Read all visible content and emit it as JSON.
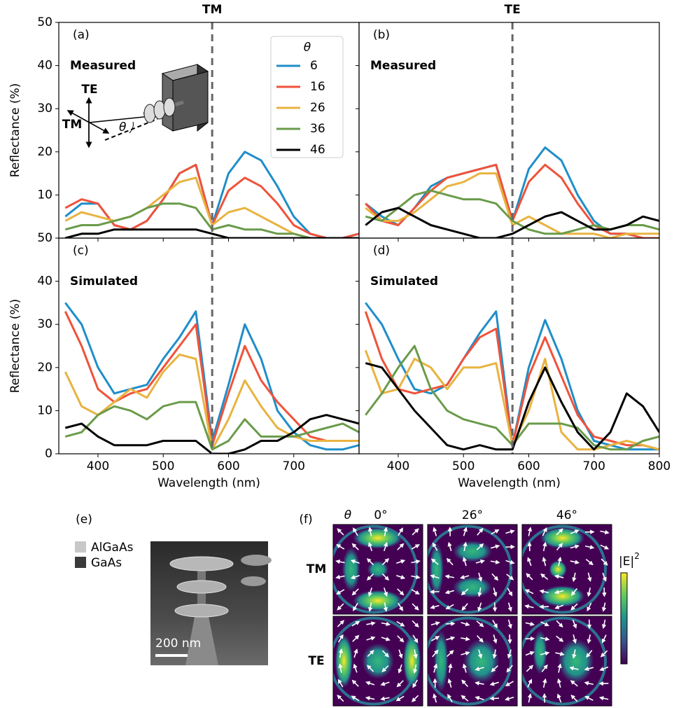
{
  "chart_data": [
    {
      "type": "line",
      "panel_label": "(a)",
      "annotation": "Measured",
      "column_title": "TM",
      "ylabel": "Reflectance (%)",
      "legend_title": "θ",
      "vline": 575,
      "x": [
        350,
        375,
        400,
        425,
        450,
        475,
        500,
        525,
        550,
        575,
        600,
        625,
        650,
        675,
        700,
        725,
        750,
        775,
        800
      ],
      "xlim": [
        340,
        800
      ],
      "xticks": [
        400,
        500,
        600,
        700
      ],
      "ylim": [
        0,
        50
      ],
      "yticks": [
        10,
        20,
        30,
        40,
        50
      ],
      "series": [
        {
          "name": "6",
          "color": "#1f8ec9",
          "values": [
            5,
            8,
            8,
            3,
            2,
            4,
            9,
            15,
            17,
            3,
            15,
            20,
            18,
            12,
            5,
            1,
            0,
            0,
            1
          ]
        },
        {
          "name": "16",
          "color": "#f0523a",
          "values": [
            7,
            9,
            8,
            3,
            2,
            4,
            9,
            15,
            17,
            3,
            11,
            14,
            12,
            8,
            3,
            1,
            0,
            0,
            1
          ]
        },
        {
          "name": "26",
          "color": "#e8b340",
          "values": [
            4,
            6,
            5,
            4,
            5,
            7,
            10,
            13,
            14,
            3,
            6,
            7,
            5,
            3,
            1,
            0,
            0,
            0,
            0
          ]
        },
        {
          "name": "36",
          "color": "#6a9b4a",
          "values": [
            2,
            3,
            3,
            4,
            5,
            7,
            8,
            8,
            7,
            2,
            3,
            2,
            2,
            1,
            1,
            0,
            0,
            0,
            0
          ]
        },
        {
          "name": "46",
          "color": "#000000",
          "values": [
            0,
            1,
            1,
            2,
            2,
            2,
            2,
            2,
            2,
            1,
            0,
            0,
            0,
            0,
            0,
            0,
            0,
            0,
            0
          ]
        }
      ]
    },
    {
      "type": "line",
      "panel_label": "(b)",
      "annotation": "Measured",
      "column_title": "TE",
      "vline": 575,
      "x": [
        350,
        375,
        400,
        425,
        450,
        475,
        500,
        525,
        550,
        575,
        600,
        625,
        650,
        675,
        700,
        725,
        750,
        775,
        800
      ],
      "xlim": [
        340,
        800
      ],
      "xticks": [
        400,
        500,
        600,
        700,
        800
      ],
      "ylim": [
        0,
        50
      ],
      "yticks": [
        10,
        20,
        30,
        40,
        50
      ],
      "series": [
        {
          "color": "#1f8ec9",
          "values": [
            8,
            5,
            3,
            7,
            12,
            14,
            15,
            16,
            17,
            4,
            16,
            21,
            18,
            10,
            4,
            1,
            1,
            0,
            0
          ]
        },
        {
          "color": "#f0523a",
          "values": [
            8,
            4,
            3,
            7,
            11,
            14,
            15,
            16,
            17,
            4,
            13,
            17,
            14,
            8,
            3,
            1,
            1,
            0,
            0
          ]
        },
        {
          "color": "#e8b340",
          "values": [
            7,
            4,
            4,
            6,
            9,
            12,
            13,
            15,
            15,
            3,
            5,
            3,
            1,
            1,
            1,
            0,
            1,
            1,
            1
          ]
        },
        {
          "color": "#6a9b4a",
          "values": [
            5,
            4,
            7,
            10,
            11,
            10,
            9,
            9,
            8,
            4,
            2,
            1,
            1,
            2,
            3,
            2,
            3,
            3,
            2
          ]
        },
        {
          "color": "#000000",
          "values": [
            3,
            6,
            7,
            5,
            3,
            2,
            1,
            0,
            0,
            1,
            3,
            5,
            6,
            4,
            2,
            2,
            3,
            5,
            4
          ]
        }
      ]
    },
    {
      "type": "line",
      "panel_label": "(c)",
      "annotation": "Simulated",
      "ylabel": "Reflectance (%)",
      "xlabel": "Wavelength (nm)",
      "vline": 575,
      "x": [
        350,
        375,
        400,
        425,
        450,
        475,
        500,
        525,
        550,
        575,
        600,
        625,
        650,
        675,
        700,
        725,
        750,
        775,
        800
      ],
      "xlim": [
        340,
        800
      ],
      "xticks": [
        400,
        500,
        600,
        700
      ],
      "ylim": [
        0,
        50
      ],
      "yticks": [
        0,
        10,
        20,
        30,
        40,
        50
      ],
      "series": [
        {
          "color": "#1f8ec9",
          "values": [
            35,
            30,
            20,
            14,
            15,
            16,
            22,
            27,
            33,
            3,
            16,
            30,
            22,
            10,
            5,
            2,
            1,
            1,
            2
          ]
        },
        {
          "color": "#f0523a",
          "values": [
            33,
            25,
            15,
            12,
            14,
            15,
            20,
            25,
            30,
            2,
            14,
            25,
            17,
            12,
            8,
            4,
            3,
            3,
            3
          ]
        },
        {
          "color": "#e8b340",
          "values": [
            19,
            11,
            9,
            12,
            15,
            13,
            19,
            23,
            22,
            1,
            8,
            17,
            11,
            6,
            4,
            3,
            3,
            3,
            3
          ]
        },
        {
          "color": "#6a9b4a",
          "values": [
            4,
            5,
            9,
            11,
            10,
            8,
            11,
            12,
            12,
            1,
            3,
            8,
            4,
            4,
            4,
            5,
            6,
            7,
            5
          ]
        },
        {
          "color": "#000000",
          "values": [
            6,
            7,
            4,
            2,
            2,
            2,
            3,
            3,
            3,
            0,
            0,
            1,
            3,
            3,
            5,
            8,
            9,
            8,
            7
          ]
        }
      ]
    },
    {
      "type": "line",
      "panel_label": "(d)",
      "annotation": "Simulated",
      "xlabel": "Wavelength (nm)",
      "vline": 575,
      "x": [
        350,
        375,
        400,
        425,
        450,
        475,
        500,
        525,
        550,
        575,
        600,
        625,
        650,
        675,
        700,
        725,
        750,
        775,
        800
      ],
      "xlim": [
        340,
        800
      ],
      "xticks": [
        400,
        500,
        600,
        700,
        800
      ],
      "ylim": [
        0,
        50
      ],
      "yticks": [
        0,
        10,
        20,
        30,
        40,
        50
      ],
      "series": [
        {
          "color": "#1f8ec9",
          "values": [
            35,
            30,
            22,
            15,
            14,
            16,
            22,
            28,
            33,
            2,
            20,
            31,
            22,
            10,
            3,
            2,
            1,
            1,
            1
          ]
        },
        {
          "color": "#f0523a",
          "values": [
            33,
            22,
            15,
            14,
            15,
            16,
            22,
            27,
            29,
            2,
            18,
            27,
            18,
            9,
            4,
            3,
            2,
            2,
            1
          ]
        },
        {
          "color": "#e8b340",
          "values": [
            24,
            14,
            15,
            22,
            20,
            15,
            20,
            20,
            21,
            2,
            10,
            22,
            5,
            1,
            1,
            2,
            3,
            2,
            1
          ]
        },
        {
          "color": "#6a9b4a",
          "values": [
            9,
            14,
            20,
            25,
            15,
            10,
            8,
            7,
            6,
            2,
            7,
            7,
            7,
            6,
            2,
            1,
            1,
            3,
            4
          ]
        },
        {
          "color": "#000000",
          "values": [
            21,
            20,
            15,
            10,
            6,
            2,
            1,
            2,
            1,
            1,
            12,
            20,
            12,
            5,
            1,
            5,
            14,
            11,
            5
          ]
        }
      ]
    }
  ],
  "inset": {
    "te": "TE",
    "tm": "TM",
    "theta": "θ"
  },
  "sem": {
    "panel_label": "(e)",
    "materials": [
      "AlGaAs",
      "GaAs"
    ],
    "scale_bar": "200 nm"
  },
  "field": {
    "panel_label": "(f)",
    "theta": "θ",
    "angles": [
      "0°",
      "26°",
      "46°"
    ],
    "rows": [
      "TM",
      "TE"
    ],
    "colorbar_label": "|E|",
    "colorbar_power": "2"
  }
}
